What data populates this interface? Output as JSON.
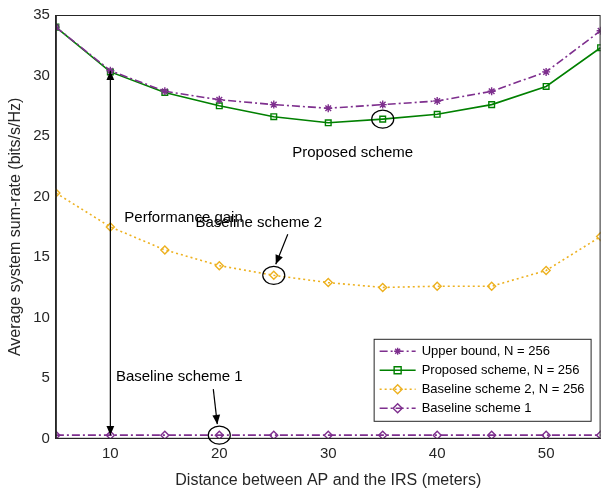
{
  "chart_data": {
    "type": "line",
    "x_label": "Distance between AP and the IRS (meters)",
    "y_label": "Average system sum-rate (bits/s/Hz)",
    "x": [
      5,
      10,
      15,
      20,
      25,
      30,
      35,
      40,
      45,
      50,
      55
    ],
    "series": [
      {
        "name": "Upper bound, N = 256",
        "color": "#7e2f8e",
        "marker": "star",
        "line_style": "dashdot",
        "values": [
          34.0,
          30.4,
          28.7,
          28.0,
          27.6,
          27.3,
          27.6,
          27.9,
          28.7,
          30.3,
          33.7
        ]
      },
      {
        "name": "Proposed scheme, N = 256",
        "color": "#008000",
        "marker": "square",
        "line_style": "solid",
        "values": [
          34.0,
          30.3,
          28.6,
          27.5,
          26.6,
          26.1,
          26.4,
          26.8,
          27.6,
          29.1,
          32.3
        ]
      },
      {
        "name": "Baseline scheme 2, N = 256",
        "color": "#edb120",
        "marker": "diamond",
        "line_style": "dotted",
        "values": [
          20.3,
          17.5,
          15.6,
          14.3,
          13.5,
          12.9,
          12.5,
          12.6,
          12.6,
          13.9,
          16.7
        ]
      },
      {
        "name": "Baseline scheme 1",
        "color": "#7e2f8e",
        "marker": "diamond",
        "line_style": "dashdot",
        "values": [
          0.3,
          0.3,
          0.3,
          0.3,
          0.3,
          0.3,
          0.3,
          0.3,
          0.3,
          0.3,
          0.3
        ]
      }
    ],
    "annotations": [
      "Performance gain",
      "Proposed scheme",
      "Baseline scheme 2",
      "Baseline scheme 1"
    ],
    "xlim": [
      5,
      55
    ],
    "xticks": [
      10,
      20,
      30,
      40,
      50
    ],
    "ylim": [
      0,
      35
    ],
    "yticks": [
      0,
      5,
      10,
      15,
      20,
      25,
      30,
      35
    ],
    "grid": false,
    "legend": "bottom-right"
  }
}
